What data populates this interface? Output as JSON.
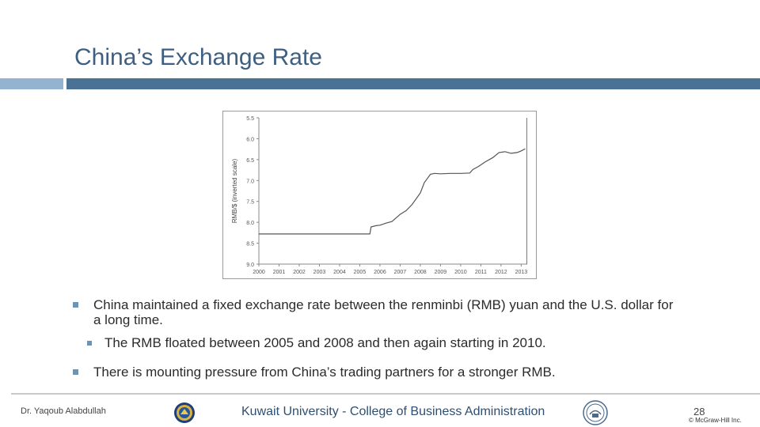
{
  "slide": {
    "title": "China’s Exchange Rate"
  },
  "chart_data": {
    "type": "line",
    "ylabel": "RMB/$ (inverted scale)",
    "xlabel": "",
    "title": "",
    "y_inverted": true,
    "ylim": [
      5.5,
      9.0
    ],
    "yticks": [
      "5.5",
      "6.0",
      "6.5",
      "7.0",
      "7.5",
      "8.0",
      "8.5",
      "9.0"
    ],
    "xlim": [
      2000,
      2013.3
    ],
    "xticks": [
      "2000",
      "2001",
      "2002",
      "2003",
      "2004",
      "2005",
      "2006",
      "2007",
      "2008",
      "2009",
      "2010",
      "2011",
      "2012",
      "2013"
    ],
    "grid": false,
    "series": [
      {
        "values_xy": [
          [
            2000.0,
            8.28
          ],
          [
            2005.5,
            8.28
          ],
          [
            2005.56,
            8.11
          ],
          [
            2005.8,
            8.08
          ],
          [
            2006.0,
            8.07
          ],
          [
            2006.3,
            8.02
          ],
          [
            2006.6,
            7.98
          ],
          [
            2007.0,
            7.81
          ],
          [
            2007.3,
            7.72
          ],
          [
            2007.6,
            7.57
          ],
          [
            2008.0,
            7.3
          ],
          [
            2008.2,
            7.05
          ],
          [
            2008.5,
            6.85
          ],
          [
            2008.7,
            6.83
          ],
          [
            2009.0,
            6.84
          ],
          [
            2009.5,
            6.83
          ],
          [
            2010.0,
            6.83
          ],
          [
            2010.45,
            6.82
          ],
          [
            2010.6,
            6.74
          ],
          [
            2010.9,
            6.66
          ],
          [
            2011.2,
            6.56
          ],
          [
            2011.6,
            6.45
          ],
          [
            2011.9,
            6.33
          ],
          [
            2012.2,
            6.31
          ],
          [
            2012.5,
            6.35
          ],
          [
            2012.8,
            6.33
          ],
          [
            2013.0,
            6.29
          ],
          [
            2013.2,
            6.24
          ]
        ]
      }
    ]
  },
  "bullets": {
    "b1": "China maintained a fixed exchange rate between the renminbi (RMB) yuan and the U.S. dollar for a long time.",
    "b2": "The RMB floated between 2005 and 2008 and then again starting in 2010.",
    "b3": "There is mounting pressure from China’s trading partners for a stronger RMB."
  },
  "footer": {
    "author": "Dr. Yaqoub Alabdullah",
    "university": "Kuwait University - College of Business Administration",
    "page_number": "28",
    "copyright": "© McGraw-Hill Inc."
  },
  "icons": {
    "bullet": "square-bullet-icon",
    "logo_left": "university-seal-icon",
    "logo_right": "college-seal-icon"
  },
  "colors": {
    "title": "#3e5f82",
    "title_bar": "#4a7295",
    "title_bar_light": "#94b3d1",
    "bullet": "#6e93b5",
    "line": "#5a5a5a"
  }
}
